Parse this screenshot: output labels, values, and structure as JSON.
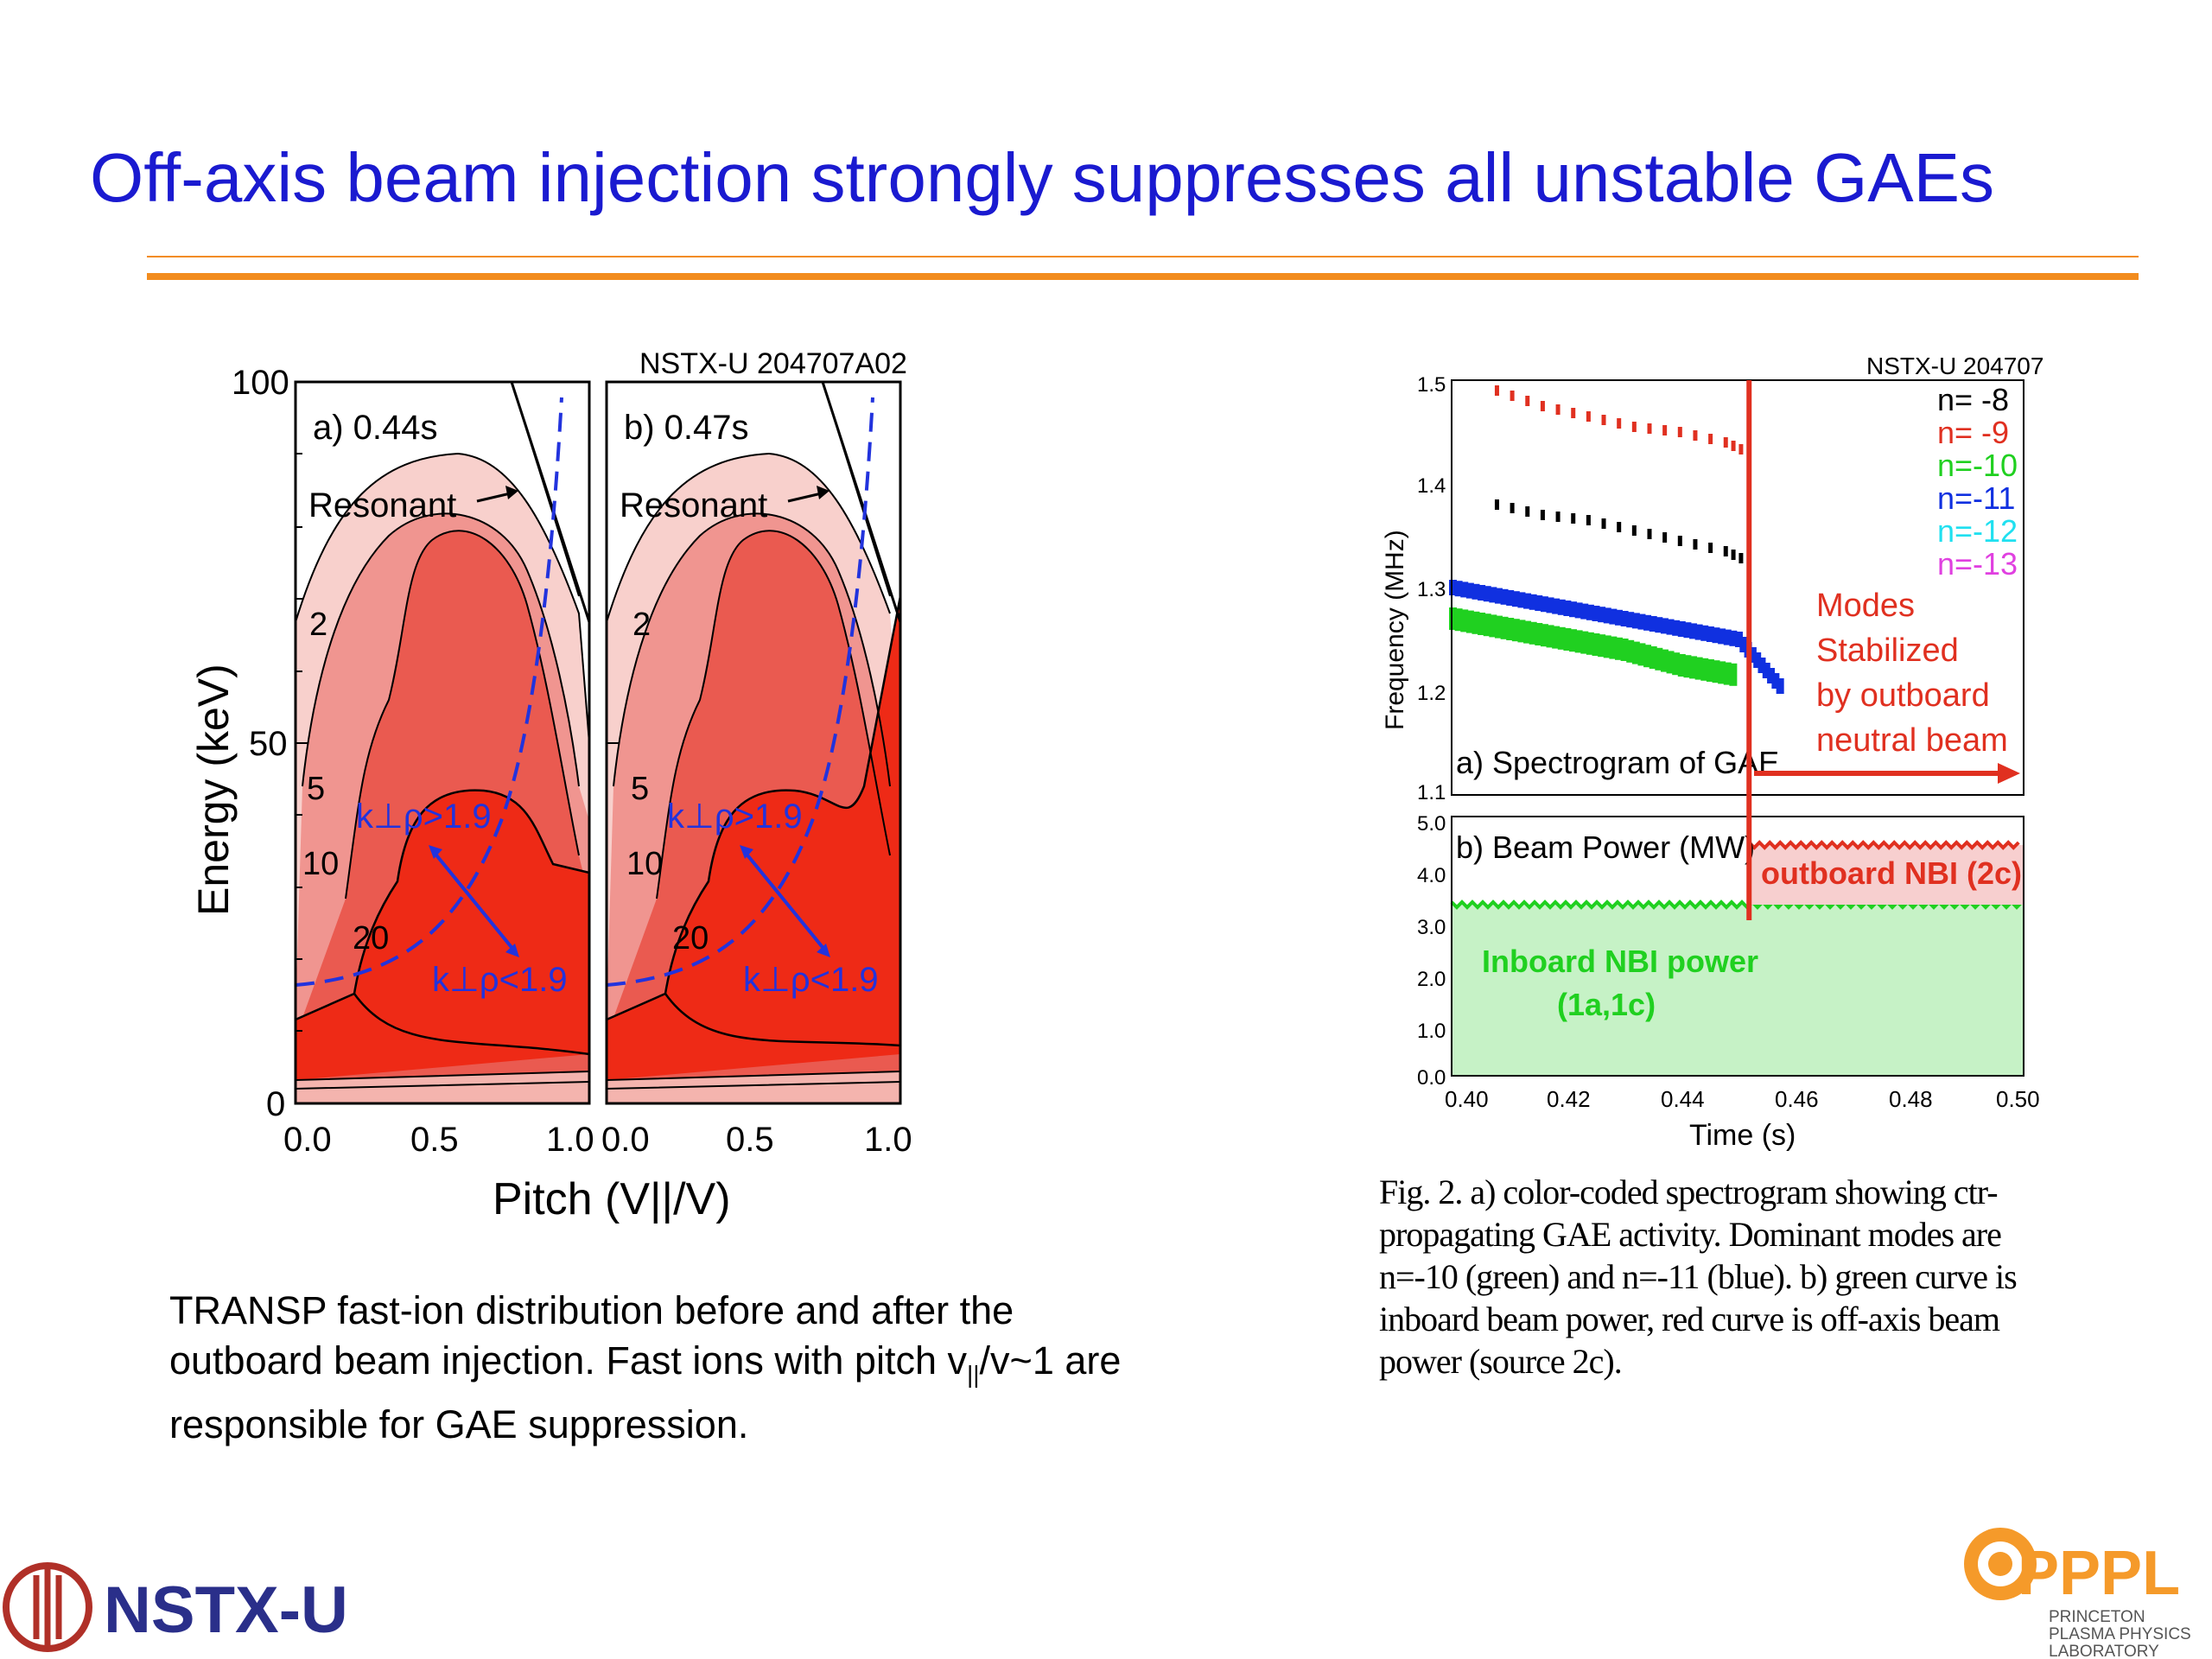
{
  "slide": {
    "title": "Off-axis beam injection strongly suppresses all unstable GAEs",
    "accent_color": "#f28c1e",
    "title_color": "#1a1ad0"
  },
  "left_figure": {
    "header": "NSTX-U 204707A02",
    "panel_a": "a) 0.44s",
    "panel_b": "b) 0.47s",
    "resonant_label": "Resonant",
    "y_label": "Energy (keV)",
    "y_ticks": [
      "100",
      "50",
      "0"
    ],
    "x_ticks": [
      "0.0",
      "0.5",
      "1.0"
    ],
    "x_label": "Pitch (V||/V)",
    "contour_labels": [
      "2",
      "5",
      "10",
      "20"
    ],
    "k_high": "k⊥ρ>1.9",
    "k_low": "k⊥ρ<1.9"
  },
  "chart_data": [
    {
      "type": "line",
      "title": "NSTX-U 204707",
      "panel_label": "a) Spectrogram of GAE",
      "ylabel": "Frequency (MHz)",
      "ylim": [
        1.1,
        1.5
      ],
      "y_ticks": [
        "1.5",
        "1.4",
        "1.3",
        "1.2",
        "1.1"
      ],
      "legend": [
        "n=  -8",
        "n=  -9",
        "n=-10",
        "n=-11",
        "n=-12",
        "n=-13"
      ],
      "legend_colors": [
        "#000000",
        "#e03020",
        "#20d020",
        "#1030e0",
        "#20e0f0",
        "#e040e0"
      ],
      "annotation": [
        "Modes",
        "Stabilized",
        "by outboard",
        "neutral beam"
      ],
      "marker_time": 0.452,
      "series": [
        {
          "name": "n=  -9",
          "x": [
            0.408,
            0.416,
            0.424,
            0.432,
            0.44,
            0.448,
            0.452
          ],
          "y": [
            1.49,
            1.475,
            1.465,
            1.455,
            1.45,
            1.44,
            1.43
          ]
        },
        {
          "name": "n=  -8",
          "x": [
            0.408,
            0.416,
            0.424,
            0.432,
            0.44,
            0.448,
            0.452
          ],
          "y": [
            1.38,
            1.37,
            1.365,
            1.355,
            1.345,
            1.335,
            1.325
          ]
        },
        {
          "name": "n=-11",
          "x": [
            0.4,
            0.41,
            0.42,
            0.43,
            0.44,
            0.45,
            0.458
          ],
          "y": [
            1.3,
            1.29,
            1.28,
            1.27,
            1.26,
            1.25,
            1.2
          ]
        },
        {
          "name": "n=-10",
          "x": [
            0.4,
            0.41,
            0.42,
            0.43,
            0.44,
            0.45
          ],
          "y": [
            1.27,
            1.26,
            1.25,
            1.24,
            1.225,
            1.215
          ]
        }
      ]
    },
    {
      "type": "area",
      "panel_label": "b) Beam Power (MW)",
      "xlabel": "Time (s)",
      "xlim": [
        0.4,
        0.5
      ],
      "ylim": [
        0,
        5
      ],
      "x_ticks": [
        "0.40",
        "0.42",
        "0.44",
        "0.46",
        "0.48",
        "0.50"
      ],
      "y_ticks": [
        "5.0",
        "4.0",
        "3.0",
        "2.0",
        "1.0",
        "0.0"
      ],
      "series": [
        {
          "name": "Inboard NBI power (1a,1c)",
          "x": [
            0.4,
            0.5
          ],
          "y": [
            3.3,
            3.3
          ],
          "color": "#20d020"
        },
        {
          "name": "outboard NBI (2c)",
          "x": [
            0.452,
            0.5
          ],
          "y": [
            4.45,
            4.45
          ],
          "color": "#e03020"
        }
      ],
      "labels": {
        "inboard_1": "Inboard NBI power",
        "inboard_2": "(1a,1c)",
        "outboard": "outboard NBI (2c)"
      }
    }
  ],
  "captions": {
    "left_1": "TRANSP fast-ion distribution before and after the",
    "left_2a": "outboard beam injection. Fast ions with pitch v",
    "left_2sub": "||",
    "left_2b": "/v~1 are",
    "left_3": "responsible for GAE suppression.",
    "figure": "Fig. 2. a) color-coded spectrogram showing ctr-propagating GAE activity.  Dominant modes are n=-10 (green) and n=-11 (blue).  b)  green curve is inboard beam power, red curve is off-axis beam power (source 2c)."
  },
  "logos": {
    "nstx": "NSTX-U",
    "pppl": "PPPL",
    "pppl_line1": "PRINCETON",
    "pppl_line2": "PLASMA PHYSICS",
    "pppl_line3": "LABORATORY"
  }
}
